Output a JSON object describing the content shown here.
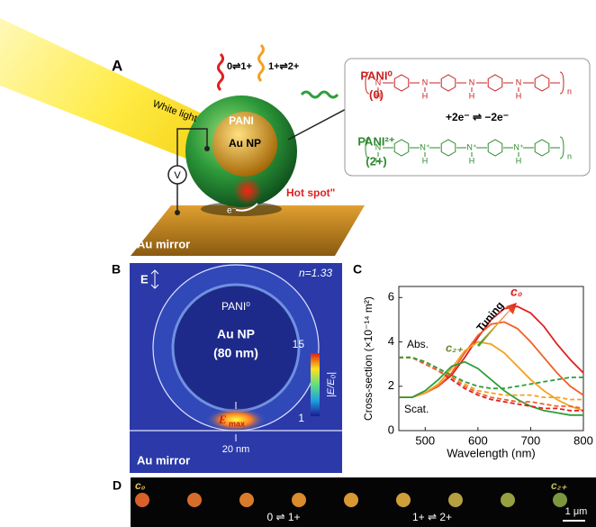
{
  "panel_a": {
    "label": "A",
    "light": "White light",
    "shell": "PANI",
    "core": "Au NP",
    "hotspot": "Hot spot\"",
    "electron": "e⁻",
    "meter": "V",
    "substrate": "Au mirror",
    "transition_1": "0⇌1+",
    "transition_2": "1+⇌2+",
    "scheme": {
      "state_0_name": "PANI⁰",
      "state_0_charge": "(0)",
      "reaction": "+2e⁻ ⇌ −2e⁻",
      "state_2_name": "PANI²⁺",
      "state_2_charge": "(2+)",
      "atom_n": "N",
      "atom_n_plus": "N⁺",
      "atom_h": "H",
      "repeat": "n"
    }
  },
  "panel_b": {
    "label": "B",
    "field": "E",
    "index": "n=1.33",
    "shell": "PANI⁰",
    "core": "Au NP",
    "size": "(80 nm)",
    "colorbar_max": "15",
    "colorbar_min": "1",
    "colorbar_label": "|E/E₀|",
    "emax": {
      "symbol": "E",
      "subscript": "max"
    },
    "gap": "20 nm",
    "substrate": "Au mirror"
  },
  "chart_data": {
    "type": "line",
    "label": "C",
    "x_label": "Wavelength (nm)",
    "y_label": "Cross-section (×10⁻¹⁴ m²)",
    "x": [
      450,
      475,
      500,
      525,
      550,
      575,
      600,
      625,
      650,
      675,
      700,
      725,
      750,
      775,
      800
    ],
    "xlim": [
      450,
      800
    ],
    "xticks": [
      500,
      600,
      700,
      800
    ],
    "ylim": [
      0,
      6.5
    ],
    "yticks": [
      0,
      2,
      4,
      6
    ],
    "annotations": {
      "tuning": "Tuning",
      "start": "c₀",
      "end": "c₂₊",
      "absorption": "Abs.",
      "scattering": "Scat."
    },
    "series": [
      {
        "color": "#e02020",
        "style": "solid",
        "values": [
          1.5,
          1.5,
          1.7,
          2.0,
          2.5,
          3.3,
          4.2,
          5.0,
          5.5,
          5.6,
          5.3,
          4.7,
          3.9,
          3.2,
          2.6
        ]
      },
      {
        "color": "#f0602a",
        "style": "solid",
        "values": [
          1.5,
          1.5,
          1.7,
          2.0,
          2.6,
          3.5,
          4.3,
          4.8,
          4.9,
          4.6,
          4.0,
          3.3,
          2.6,
          2.0,
          1.6
        ]
      },
      {
        "color": "#f5a020",
        "style": "solid",
        "values": [
          1.5,
          1.5,
          1.7,
          2.1,
          2.8,
          3.6,
          4.0,
          3.9,
          3.5,
          2.9,
          2.3,
          1.8,
          1.4,
          1.1,
          0.9
        ]
      },
      {
        "color": "#2e9e3a",
        "style": "solid",
        "values": [
          1.5,
          1.5,
          1.8,
          2.3,
          2.9,
          3.1,
          2.8,
          2.3,
          1.8,
          1.4,
          1.1,
          0.9,
          0.8,
          0.7,
          0.7
        ]
      },
      {
        "color": "#e02020",
        "style": "dashed",
        "values": [
          3.3,
          3.3,
          3.0,
          2.7,
          2.3,
          1.9,
          1.6,
          1.4,
          1.3,
          1.2,
          1.1,
          1.0,
          1.0,
          0.9,
          0.9
        ]
      },
      {
        "color": "#f0602a",
        "style": "dashed",
        "values": [
          3.3,
          3.3,
          3.0,
          2.7,
          2.4,
          2.0,
          1.7,
          1.5,
          1.4,
          1.3,
          1.3,
          1.2,
          1.1,
          1.1,
          1.0
        ]
      },
      {
        "color": "#f5a020",
        "style": "dashed",
        "values": [
          3.3,
          3.3,
          3.1,
          2.8,
          2.5,
          2.1,
          1.8,
          1.7,
          1.6,
          1.6,
          1.6,
          1.5,
          1.5,
          1.4,
          1.4
        ]
      },
      {
        "color": "#2e9e3a",
        "style": "dashed",
        "values": [
          3.3,
          3.3,
          3.1,
          2.8,
          2.5,
          2.2,
          2.0,
          1.9,
          1.9,
          2.0,
          2.1,
          2.2,
          2.3,
          2.4,
          2.4
        ]
      }
    ]
  },
  "panel_d": {
    "label": "D",
    "start": "c₀",
    "end": "c₂₊",
    "step_1": "0 ⇌ 1+",
    "step_2": "1+ ⇌ 2+",
    "scale": "1 μm",
    "spot_colors": [
      "#f06a30",
      "#f07830",
      "#f08a30",
      "#f29a30",
      "#f0a838",
      "#e6b040",
      "#c8b048",
      "#a8b048",
      "#88a848"
    ]
  }
}
